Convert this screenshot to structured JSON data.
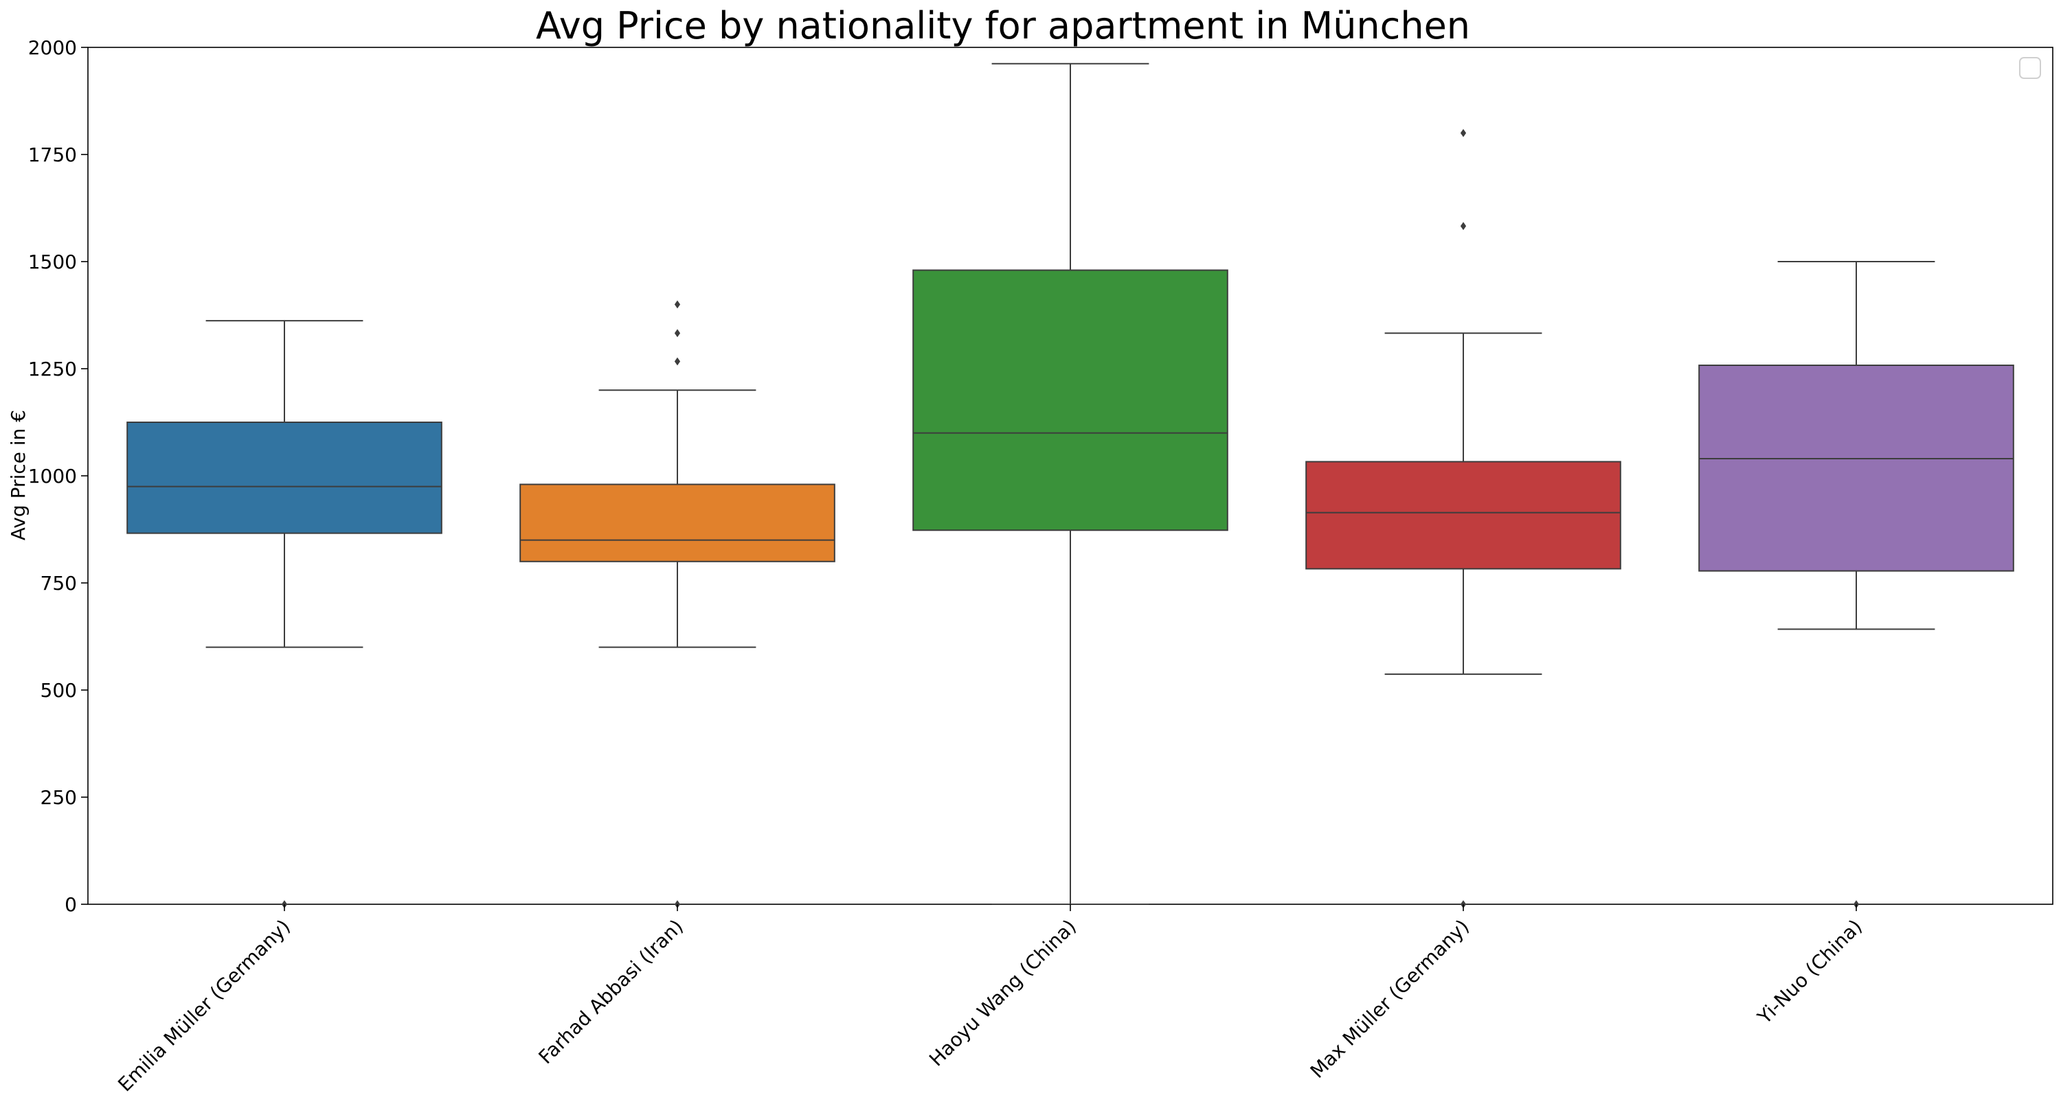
{
  "chart_data": {
    "type": "box",
    "title": "Avg Price by nationality for apartment in München",
    "xlabel": "",
    "ylabel": "Avg Price in €",
    "ylim": [
      0,
      2000
    ],
    "yticks": [
      0,
      250,
      500,
      750,
      1000,
      1250,
      1500,
      1750,
      2000
    ],
    "grid": false,
    "legend": {
      "placement": "top-right",
      "entries": []
    },
    "categories": [
      "Emilia Müller (Germany)",
      "Farhad Abbasi (Iran)",
      "Haoyu Wang (China)",
      "Max Müller (Germany)",
      "Yi-Nuo (China)"
    ],
    "boxes": [
      {
        "name": "Emilia Müller (Germany)",
        "color": "#3274a1",
        "whisker_low": 600,
        "q1": 866,
        "median": 975,
        "q3": 1125,
        "whisker_high": 1362,
        "outliers": [
          0
        ]
      },
      {
        "name": "Farhad Abbasi (Iran)",
        "color": "#e1812c",
        "whisker_low": 600,
        "q1": 800,
        "median": 850,
        "q3": 980,
        "whisker_high": 1200,
        "outliers": [
          0,
          1267,
          1333,
          1400
        ]
      },
      {
        "name": "Haoyu Wang (China)",
        "color": "#3a923a",
        "whisker_low": 0,
        "q1": 873,
        "median": 1100,
        "q3": 1480,
        "whisker_high": 1962,
        "outliers": []
      },
      {
        "name": "Max Müller (Germany)",
        "color": "#c03d3e",
        "whisker_low": 537,
        "q1": 783,
        "median": 914,
        "q3": 1033,
        "whisker_high": 1333,
        "outliers": [
          0,
          1583,
          1800
        ]
      },
      {
        "name": "Yi-Nuo (China)",
        "color": "#9372b2",
        "whisker_low": 642,
        "q1": 778,
        "median": 1040,
        "q3": 1258,
        "whisker_high": 1500,
        "outliers": [
          0
        ]
      }
    ]
  }
}
